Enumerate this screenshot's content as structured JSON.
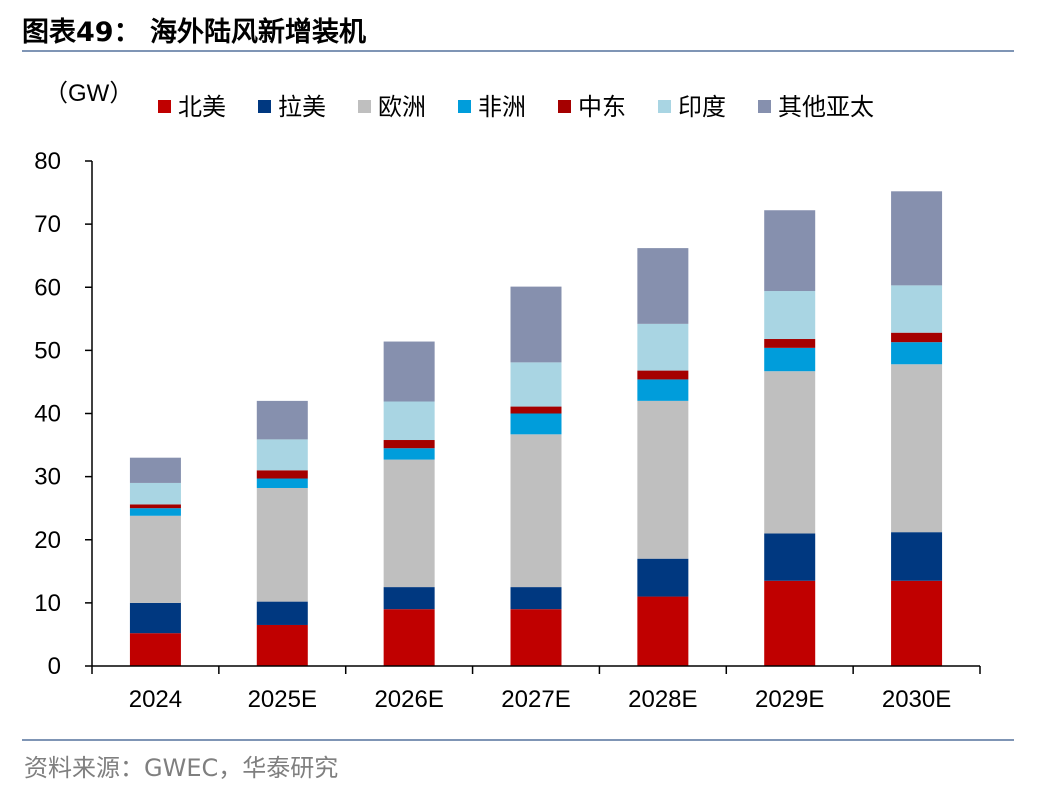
{
  "figure": {
    "title": "图表49：  海外陆风新增装机",
    "source": "资料来源：GWEC，华泰研究"
  },
  "chart_data": {
    "type": "bar",
    "stacked": true,
    "unit_label": "（GW）",
    "categories": [
      "2024",
      "2025E",
      "2026E",
      "2027E",
      "2028E",
      "2029E",
      "2030E"
    ],
    "ylim": [
      0,
      80
    ],
    "yticks": [
      0,
      10,
      20,
      30,
      40,
      50,
      60,
      70,
      80
    ],
    "grid": false,
    "legend_position": "top",
    "series": [
      {
        "name": "北美",
        "color": "#c00000",
        "values": [
          5.2,
          6.5,
          9.0,
          9.0,
          11.0,
          13.5,
          13.5
        ]
      },
      {
        "name": "拉美",
        "color": "#003880",
        "values": [
          4.8,
          3.7,
          3.5,
          3.5,
          6.0,
          7.5,
          7.7
        ]
      },
      {
        "name": "欧洲",
        "color": "#bfbfbf",
        "values": [
          13.8,
          18.0,
          20.2,
          24.2,
          25.0,
          25.7,
          26.6
        ]
      },
      {
        "name": "非洲",
        "color": "#009ddb",
        "values": [
          1.2,
          1.5,
          1.8,
          3.3,
          3.4,
          3.7,
          3.5
        ]
      },
      {
        "name": "中东",
        "color": "#a50000",
        "values": [
          0.6,
          1.3,
          1.3,
          1.1,
          1.4,
          1.4,
          1.5
        ]
      },
      {
        "name": "印度",
        "color": "#a9d5e3",
        "values": [
          3.4,
          4.9,
          6.1,
          7.0,
          7.4,
          7.6,
          7.5
        ]
      },
      {
        "name": "其他亚太",
        "color": "#8690ae",
        "values": [
          4.0,
          6.1,
          9.5,
          12.0,
          12.0,
          12.8,
          14.9
        ]
      }
    ]
  }
}
